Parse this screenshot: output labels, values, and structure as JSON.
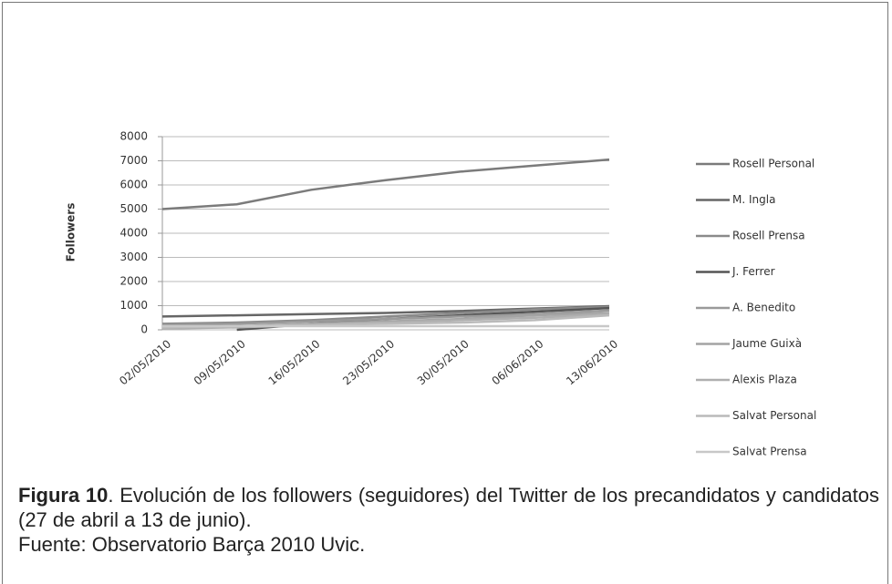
{
  "chart_data": {
    "type": "line",
    "ylabel": "Followers",
    "categories": [
      "02/05/2010",
      "09/05/2010",
      "16/05/2010",
      "23/05/2010",
      "30/05/2010",
      "06/06/2010",
      "13/06/2010"
    ],
    "series": [
      {
        "name": "Rosell Personal",
        "color": "#7b7b7b",
        "values": [
          5000,
          5200,
          5800,
          6200,
          6550,
          6800,
          7050
        ]
      },
      {
        "name": "M. Ingla",
        "color": "#666666",
        "values": [
          550,
          600,
          650,
          700,
          780,
          880,
          980
        ]
      },
      {
        "name": "Rosell Prensa",
        "color": "#8a8a8a",
        "values": [
          250,
          300,
          400,
          550,
          700,
          850,
          950
        ]
      },
      {
        "name": "J. Ferrer",
        "color": "#555555",
        "values": [
          null,
          0,
          250,
          450,
          600,
          750,
          900
        ]
      },
      {
        "name": "A. Benedito",
        "color": "#9a9a9a",
        "values": [
          200,
          250,
          350,
          450,
          550,
          650,
          800
        ]
      },
      {
        "name": "Jaume Guixà",
        "color": "#a4a4a4",
        "values": [
          100,
          150,
          250,
          350,
          450,
          600,
          700
        ]
      },
      {
        "name": "Alexis Plaza",
        "color": "#afafaf",
        "values": [
          50,
          100,
          200,
          300,
          400,
          500,
          650
        ]
      },
      {
        "name": "Salvat Personal",
        "color": "#bababa",
        "values": [
          100,
          150,
          200,
          250,
          300,
          400,
          600
        ]
      },
      {
        "name": "Salvat Prensa",
        "color": "#c8c8c8",
        "values": [
          150,
          150,
          150,
          150,
          150,
          150,
          150
        ]
      }
    ],
    "ylim": [
      0,
      8000
    ],
    "yticks": [
      0,
      1000,
      2000,
      3000,
      4000,
      5000,
      6000,
      7000,
      8000
    ],
    "grid": true,
    "legend": "right"
  },
  "caption": {
    "label": "Figura 10",
    "text": ". Evolución de los followers (seguidores) del Twitter de los precandidatos y candidatos (27 de abril a 13 de junio).",
    "source": "Fuente: Observatorio Barça 2010 Uvic."
  }
}
